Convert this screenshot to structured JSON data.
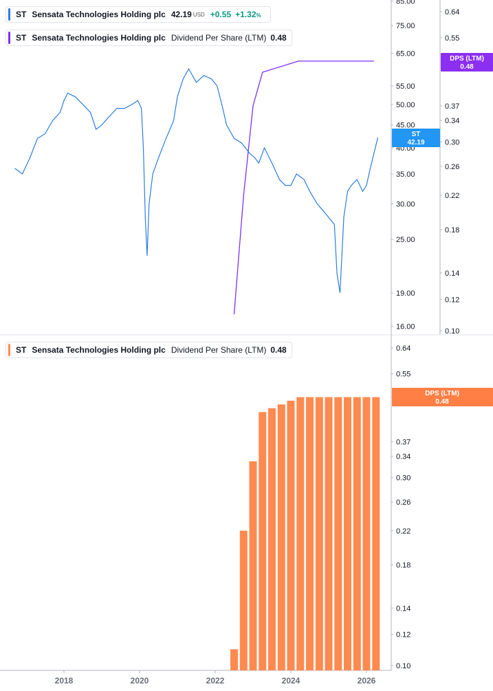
{
  "symbol": "ST",
  "company": "Sensata Technologies Holding plc",
  "price_legend": {
    "price": "42.19",
    "currency": "USD",
    "change": "+0.55",
    "change_pct": "+1.32",
    "pct_sign": "%"
  },
  "dps_indicator": {
    "name": "Dividend Per Share (LTM)",
    "value": "0.48"
  },
  "price_badge": {
    "label": "ST",
    "value": "42.19"
  },
  "dps_badge_top": {
    "label": "DPS (LTM)",
    "value": "0.48"
  },
  "dps_badge_bottom": {
    "label": "DPS (LTM)",
    "value": "0.48"
  },
  "colors": {
    "price_line": "#2a7de1",
    "dps_line": "#7b2ff7",
    "dps_bars": "#ff8a50",
    "badge_blue": "#2196f3",
    "badge_purple": "#8b2ff0",
    "badge_orange": "#ff7f45"
  },
  "price_axis_ticks": [
    "85.00",
    "75.00",
    "65.00",
    "55.00",
    "50.00",
    "45.00",
    "40.00",
    "35.00",
    "30.00",
    "25.00",
    "19.00",
    "16.00"
  ],
  "dps_axis_ticks_top": [
    "0.64",
    "0.55",
    "0.37",
    "0.34",
    "0.30",
    "0.26",
    "0.22",
    "0.18",
    "0.14",
    "0.12",
    "0.10"
  ],
  "dps_axis_ticks_bottom": [
    "0.64",
    "0.55",
    "0.48",
    "0.37",
    "0.34",
    "0.30",
    "0.26",
    "0.22",
    "0.18",
    "0.14",
    "0.12",
    "0.10"
  ],
  "x_axis_ticks": [
    "2018",
    "2020",
    "2022",
    "2024",
    "2026"
  ],
  "chart_data": [
    {
      "type": "line",
      "scale": "log",
      "series": [
        {
          "symbol": "ST",
          "x": [
            2016.7,
            2016.9,
            2017.1,
            2017.3,
            2017.5,
            2017.7,
            2017.9,
            2018.0,
            2018.1,
            2018.3,
            2018.5,
            2018.7,
            2018.85,
            2019.0,
            2019.2,
            2019.4,
            2019.6,
            2019.8,
            2019.95,
            2020.05,
            2020.1,
            2020.15,
            2020.2,
            2020.25,
            2020.35,
            2020.5,
            2020.7,
            2020.9,
            2021.0,
            2021.15,
            2021.3,
            2021.5,
            2021.7,
            2021.9,
            2022.05,
            2022.2,
            2022.3,
            2022.5,
            2022.7,
            2022.9,
            2023.05,
            2023.15,
            2023.3,
            2023.5,
            2023.7,
            2023.85,
            2024.0,
            2024.15,
            2024.35,
            2024.5,
            2024.7,
            2024.85,
            2025.0,
            2025.15,
            2025.22,
            2025.3,
            2025.4,
            2025.5,
            2025.6,
            2025.75,
            2025.9,
            2026.0,
            2026.1,
            2026.2,
            2026.3
          ],
          "y": [
            36,
            35,
            38,
            42,
            43,
            46,
            48,
            51,
            53,
            52,
            50,
            48,
            44,
            45,
            47,
            49,
            49,
            50,
            51,
            49,
            40,
            28,
            23,
            30,
            35,
            38,
            42,
            46,
            52,
            57,
            60,
            56,
            58,
            57,
            55,
            49,
            45,
            42,
            41,
            39,
            38,
            37,
            40,
            37,
            34,
            33,
            33,
            35,
            34,
            32,
            30,
            29,
            28,
            27,
            21,
            19,
            28,
            32,
            33,
            34,
            32,
            33,
            36,
            39,
            42.19
          ]
        }
      ]
    },
    {
      "type": "line",
      "scale": "log",
      "series": [
        {
          "name": "DPS (LTM)",
          "x": [
            2022.5,
            2022.75,
            2023.0,
            2023.25,
            2024.2,
            2026.2
          ],
          "y": [
            0.11,
            0.22,
            0.37,
            0.45,
            0.48,
            0.48
          ]
        }
      ]
    },
    {
      "type": "bar",
      "scale": "log",
      "series": [
        {
          "name": "DPS (LTM)",
          "x": [
            2022.5,
            2022.75,
            2023.0,
            2023.25,
            2023.5,
            2023.75,
            2024.0,
            2024.25,
            2024.5,
            2024.75,
            2025.0,
            2025.25,
            2025.5,
            2025.75,
            2026.0,
            2026.25
          ],
          "y": [
            0.11,
            0.22,
            0.33,
            0.44,
            0.45,
            0.46,
            0.47,
            0.48,
            0.48,
            0.48,
            0.48,
            0.48,
            0.48,
            0.48,
            0.48,
            0.48
          ]
        }
      ]
    }
  ]
}
